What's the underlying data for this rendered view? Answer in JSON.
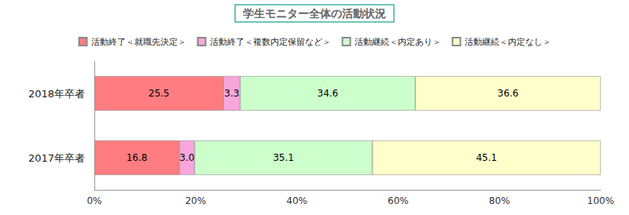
{
  "chart_data": {
    "type": "bar",
    "title": "学生モニター全体の活動状況",
    "orientation": "horizontal",
    "stacked": true,
    "data_labels": true,
    "grid": false,
    "legend": "top",
    "categories": [
      "2018年卒者",
      "2017年卒者"
    ],
    "series": [
      {
        "name": "活動終了＜就職先決定＞",
        "color": "#ff7c80",
        "values": [
          25.5,
          16.8
        ],
        "value_labels": [
          "25.5",
          "16.8"
        ]
      },
      {
        "name": "活動終了＜複数内定保留など＞",
        "color": "#f9a6dc",
        "values": [
          3.3,
          3.0
        ],
        "value_labels": [
          "3.3",
          "3.0"
        ]
      },
      {
        "name": "活動継続＜内定あり＞",
        "color": "#ccffcc",
        "values": [
          34.6,
          35.1
        ],
        "value_labels": [
          "34.6",
          "35.1"
        ]
      },
      {
        "name": "活動継続＜内定なし＞",
        "color": "#ffffcc",
        "values": [
          36.6,
          45.1
        ],
        "value_labels": [
          "36.6",
          "45.1"
        ]
      }
    ],
    "xlim": [
      0,
      100
    ],
    "xticks": [
      {
        "value": 0,
        "label": "0%"
      },
      {
        "value": 20,
        "label": "20%"
      },
      {
        "value": 40,
        "label": "40%"
      },
      {
        "value": 60,
        "label": "60%"
      },
      {
        "value": 80,
        "label": "80%"
      },
      {
        "value": 100,
        "label": "100%"
      }
    ]
  }
}
